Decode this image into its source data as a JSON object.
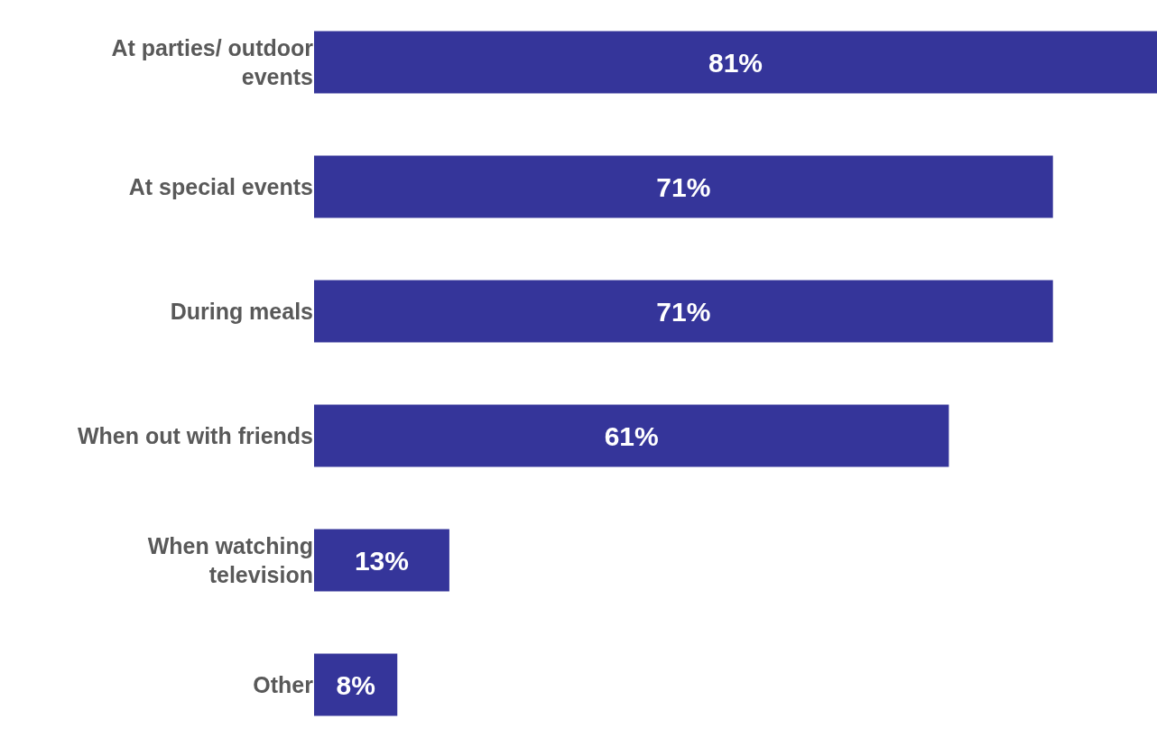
{
  "chart_data": {
    "type": "bar",
    "orientation": "horizontal",
    "categories": [
      "At parties/ outdoor events",
      "At special events",
      "During meals",
      "When out with friends",
      "When watching television",
      "Other"
    ],
    "values": [
      81,
      71,
      71,
      61,
      13,
      8
    ],
    "value_labels": [
      "81%",
      "71%",
      "71%",
      "61%",
      "13%",
      "8%"
    ],
    "color": "#35359a"
  }
}
